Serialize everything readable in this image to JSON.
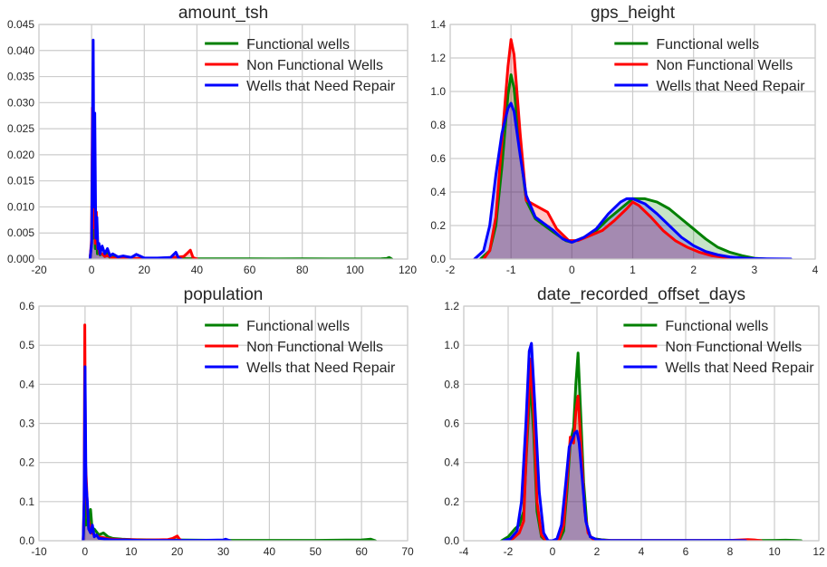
{
  "chart_data": [
    {
      "type": "area",
      "title": "amount_tsh",
      "xlim": [
        -20,
        120
      ],
      "ylim": [
        0,
        0.045
      ],
      "xticks": [
        -20,
        0,
        20,
        40,
        60,
        80,
        100,
        120
      ],
      "yticks": [
        0.0,
        0.005,
        0.01,
        0.015,
        0.02,
        0.025,
        0.03,
        0.035,
        0.04,
        0.045
      ],
      "ytick_labels": [
        "0.000",
        "0.005",
        "0.010",
        "0.015",
        "0.020",
        "0.025",
        "0.030",
        "0.035",
        "0.040",
        "0.045"
      ],
      "grid": true,
      "legend": "top-right",
      "series": [
        {
          "name": "Functional wells",
          "color": "#008000",
          "x": [
            -0.6,
            -0.2,
            0,
            0.3,
            0.6,
            1.0,
            1.4,
            1.8,
            2.2,
            2.7,
            3.2,
            4,
            5,
            6,
            7,
            8,
            10,
            12,
            15,
            20,
            30,
            40,
            50,
            60,
            70,
            80,
            90,
            100,
            110,
            112,
            113,
            114
          ],
          "y": [
            0,
            0.002,
            0.003,
            0.018,
            0.004,
            0.012,
            0.002,
            0.006,
            0.001,
            0.002,
            0.0008,
            0.001,
            0.0005,
            0.0012,
            0.0002,
            0.0006,
            0.0002,
            0.0003,
            0.0001,
            0.0001,
            0.0001,
            5e-05,
            5e-05,
            5e-05,
            3e-05,
            5e-05,
            3e-05,
            3e-05,
            5e-05,
            0.0001,
            0.0003,
            0
          ]
        },
        {
          "name": "Non Functional Wells",
          "color": "#ff0000",
          "x": [
            -0.6,
            -0.2,
            0,
            0.3,
            0.6,
            1.0,
            1.4,
            1.8,
            2.2,
            2.6,
            3,
            4,
            5,
            6,
            8,
            10,
            15,
            20,
            25,
            30,
            33,
            35,
            36.5,
            37.5,
            38.5,
            40
          ],
          "y": [
            0,
            0.0025,
            0.004,
            0.029,
            0.006,
            0.027,
            0.003,
            0.009,
            0.002,
            0.003,
            0.001,
            0.001,
            0.0005,
            0.0007,
            0.0002,
            0.0002,
            0.0001,
            0.0001,
            0.0001,
            0.0003,
            0.0004,
            0.0005,
            0.0012,
            0.0017,
            0.0003,
            0
          ]
        },
        {
          "name": "Wells that Need Repair",
          "color": "#0000ff",
          "x": [
            -0.6,
            -0.2,
            0,
            0.3,
            0.6,
            0.9,
            1.2,
            1.6,
            2.0,
            2.4,
            2.8,
            3.2,
            4,
            5,
            6,
            7,
            8,
            10,
            12,
            15,
            16,
            17,
            20,
            25,
            30,
            31,
            32,
            33,
            34
          ],
          "y": [
            0,
            0.002,
            0.003,
            0.022,
            0.042,
            0.01,
            0.028,
            0.004,
            0.008,
            0.002,
            0.003,
            0.001,
            0.0025,
            0.001,
            0.002,
            0.0006,
            0.001,
            0.0004,
            0.0006,
            0.0003,
            0.0006,
            0.0009,
            0.0002,
            0.0002,
            0.0003,
            0.0008,
            0.0013,
            0.0002,
            0
          ]
        }
      ]
    },
    {
      "type": "area",
      "title": "gps_height",
      "xlim": [
        -2,
        4
      ],
      "ylim": [
        0,
        1.4
      ],
      "xticks": [
        -2,
        -1,
        0,
        1,
        2,
        3,
        4
      ],
      "yticks": [
        0.0,
        0.2,
        0.4,
        0.6,
        0.8,
        1.0,
        1.2,
        1.4
      ],
      "ytick_labels": [
        "0.0",
        "0.2",
        "0.4",
        "0.6",
        "0.8",
        "1.0",
        "1.2",
        "1.4"
      ],
      "grid": true,
      "legend": "top-right",
      "series": [
        {
          "name": "Functional wells",
          "color": "#008000",
          "x": [
            -1.5,
            -1.35,
            -1.25,
            -1.15,
            -1.05,
            -1.0,
            -0.95,
            -0.85,
            -0.75,
            -0.6,
            -0.45,
            -0.3,
            -0.1,
            0,
            0.2,
            0.4,
            0.6,
            0.8,
            1.0,
            1.2,
            1.4,
            1.6,
            1.8,
            2.0,
            2.2,
            2.4,
            2.6,
            2.8,
            3.0,
            3.2
          ],
          "y": [
            0,
            0.05,
            0.2,
            0.55,
            0.98,
            1.1,
            1.02,
            0.65,
            0.35,
            0.24,
            0.2,
            0.16,
            0.11,
            0.1,
            0.13,
            0.17,
            0.24,
            0.3,
            0.36,
            0.36,
            0.34,
            0.3,
            0.24,
            0.18,
            0.12,
            0.07,
            0.04,
            0.02,
            0.005,
            0
          ]
        },
        {
          "name": "Non Functional Wells",
          "color": "#ff0000",
          "x": [
            -1.45,
            -1.35,
            -1.25,
            -1.15,
            -1.05,
            -1.0,
            -0.95,
            -0.85,
            -0.75,
            -0.55,
            -0.4,
            -0.25,
            -0.05,
            0.1,
            0.3,
            0.5,
            0.7,
            0.9,
            1.0,
            1.1,
            1.3,
            1.5,
            1.7,
            1.9,
            2.1,
            2.3,
            2.5,
            2.7
          ],
          "y": [
            0,
            0.05,
            0.25,
            0.7,
            1.15,
            1.31,
            1.22,
            0.75,
            0.35,
            0.31,
            0.28,
            0.18,
            0.11,
            0.11,
            0.14,
            0.17,
            0.23,
            0.3,
            0.34,
            0.32,
            0.25,
            0.17,
            0.11,
            0.07,
            0.04,
            0.02,
            0.01,
            0
          ]
        },
        {
          "name": "Wells that Need Repair",
          "color": "#0000ff",
          "x": [
            -1.6,
            -1.45,
            -1.35,
            -1.25,
            -1.15,
            -1.05,
            -1.0,
            -0.95,
            -0.85,
            -0.75,
            -0.6,
            -0.45,
            -0.3,
            -0.15,
            0,
            0.2,
            0.4,
            0.6,
            0.8,
            0.9,
            1.0,
            1.2,
            1.4,
            1.6,
            1.8,
            2.0,
            2.2,
            2.4,
            2.6,
            2.8,
            3.0,
            3.2,
            3.4,
            3.6
          ],
          "y": [
            0,
            0.05,
            0.2,
            0.5,
            0.75,
            0.9,
            0.93,
            0.88,
            0.62,
            0.38,
            0.25,
            0.21,
            0.17,
            0.12,
            0.1,
            0.13,
            0.18,
            0.27,
            0.34,
            0.36,
            0.36,
            0.33,
            0.27,
            0.2,
            0.13,
            0.08,
            0.045,
            0.025,
            0.012,
            0.006,
            0.003,
            0.001,
            0.0005,
            0
          ]
        }
      ]
    },
    {
      "type": "area",
      "title": "population",
      "xlim": [
        -10,
        70
      ],
      "ylim": [
        0,
        0.6
      ],
      "xticks": [
        -10,
        0,
        10,
        20,
        30,
        40,
        50,
        60,
        70
      ],
      "yticks": [
        0.0,
        0.1,
        0.2,
        0.3,
        0.4,
        0.5,
        0.6
      ],
      "ytick_labels": [
        "0.0",
        "0.1",
        "0.2",
        "0.3",
        "0.4",
        "0.5",
        "0.6"
      ],
      "grid": true,
      "legend": "top-right",
      "series": [
        {
          "name": "Functional wells",
          "color": "#008000",
          "x": [
            -0.4,
            -0.2,
            0,
            0.2,
            0.5,
            0.8,
            1.2,
            1.6,
            2,
            3,
            4,
            5,
            6,
            8,
            10,
            15,
            20,
            30,
            40,
            50,
            60,
            61,
            62,
            62.5,
            63
          ],
          "y": [
            0,
            0.05,
            0.12,
            0.04,
            0.07,
            0.03,
            0.08,
            0.02,
            0.03,
            0.015,
            0.02,
            0.01,
            0.006,
            0.004,
            0.003,
            0.002,
            0.002,
            0.001,
            0.001,
            0.001,
            0.002,
            0.003,
            0.004,
            0.002,
            0
          ]
        },
        {
          "name": "Non Functional Wells",
          "color": "#ff0000",
          "x": [
            -0.4,
            -0.2,
            -0.05,
            0.1,
            0.3,
            0.6,
            1.0,
            1.5,
            2,
            3,
            4,
            5,
            6,
            8,
            10,
            12,
            15,
            18,
            19,
            20,
            20.5,
            21
          ],
          "y": [
            0,
            0.1,
            0.552,
            0.2,
            0.15,
            0.06,
            0.04,
            0.02,
            0.015,
            0.01,
            0.008,
            0.005,
            0.004,
            0.003,
            0.003,
            0.002,
            0.002,
            0.003,
            0.006,
            0.012,
            0.004,
            0
          ]
        },
        {
          "name": "Wells that Need Repair",
          "color": "#0000ff",
          "x": [
            -0.4,
            -0.2,
            0,
            0.2,
            0.5,
            0.8,
            1.2,
            1.6,
            2,
            2.5,
            3,
            4,
            5,
            7,
            9,
            12,
            15,
            20,
            25,
            30,
            30.5,
            31,
            31.5
          ],
          "y": [
            0,
            0.1,
            0.445,
            0.15,
            0.1,
            0.03,
            0.02,
            0.04,
            0.01,
            0.015,
            0.006,
            0.005,
            0.003,
            0.002,
            0.002,
            0.001,
            0.001,
            0.001,
            0.001,
            0.002,
            0.004,
            0.002,
            0
          ]
        }
      ]
    },
    {
      "type": "area",
      "title": "date_recorded_offset_days",
      "xlim": [
        -4,
        12
      ],
      "ylim": [
        0,
        1.2
      ],
      "xticks": [
        -4,
        -2,
        0,
        2,
        4,
        6,
        8,
        10,
        12
      ],
      "yticks": [
        0.0,
        0.2,
        0.4,
        0.6,
        0.8,
        1.0,
        1.2
      ],
      "ytick_labels": [
        "0.0",
        "0.2",
        "0.4",
        "0.6",
        "0.8",
        "1.0",
        "1.2"
      ],
      "grid": true,
      "legend": "top-right",
      "series": [
        {
          "name": "Functional wells",
          "color": "#008000",
          "x": [
            -2.3,
            -2.0,
            -1.7,
            -1.5,
            -1.3,
            -1.15,
            -1.0,
            -0.85,
            -0.7,
            -0.5,
            -0.3,
            -0.1,
            0.1,
            0.3,
            0.5,
            0.65,
            0.8,
            0.95,
            1.05,
            1.15,
            1.25,
            1.4,
            1.55,
            1.7,
            1.9,
            2.2,
            2.6,
            3,
            5,
            7,
            9,
            10,
            10.5,
            10.9,
            11.2
          ],
          "y": [
            0,
            0.02,
            0.06,
            0.08,
            0.15,
            0.5,
            0.82,
            0.55,
            0.15,
            0.02,
            0,
            0,
            0,
            0,
            0.05,
            0.25,
            0.5,
            0.58,
            0.8,
            0.96,
            0.7,
            0.3,
            0.08,
            0.02,
            0.01,
            0.005,
            0.002,
            0.001,
            0.001,
            0.001,
            0.001,
            0.002,
            0.003,
            0.002,
            0
          ]
        },
        {
          "name": "Non Functional Wells",
          "color": "#ff0000",
          "x": [
            -2.1,
            -1.8,
            -1.5,
            -1.3,
            -1.15,
            -1.0,
            -0.85,
            -0.7,
            -0.5,
            -0.3,
            -0.1,
            0.1,
            0.3,
            0.5,
            0.65,
            0.8,
            0.95,
            1.05,
            1.15,
            1.3,
            1.45,
            1.6,
            1.8,
            2.1,
            2.6,
            4,
            6,
            8,
            8.8,
            9.1,
            9.4
          ],
          "y": [
            0,
            0.01,
            0.04,
            0.1,
            0.55,
            0.93,
            0.65,
            0.2,
            0.03,
            0,
            0,
            0,
            0.01,
            0.08,
            0.3,
            0.53,
            0.5,
            0.66,
            0.74,
            0.45,
            0.15,
            0.04,
            0.01,
            0.004,
            0.001,
            0.001,
            0.001,
            0.002,
            0.006,
            0.004,
            0
          ]
        },
        {
          "name": "Wells that Need Repair",
          "color": "#0000ff",
          "x": [
            -2.2,
            -1.9,
            -1.6,
            -1.4,
            -1.2,
            -1.05,
            -0.95,
            -0.8,
            -0.6,
            -0.4,
            -0.2,
            0,
            0.2,
            0.4,
            0.6,
            0.75,
            0.9,
            1.0,
            1.1,
            1.2,
            1.35,
            1.5,
            1.7,
            2.0,
            2.4,
            3,
            5,
            7,
            8,
            8.5,
            8.7
          ],
          "y": [
            0,
            0.01,
            0.05,
            0.2,
            0.6,
            0.97,
            1.01,
            0.7,
            0.25,
            0.04,
            0,
            0,
            0.01,
            0.08,
            0.3,
            0.48,
            0.52,
            0.55,
            0.56,
            0.5,
            0.3,
            0.1,
            0.02,
            0.005,
            0.002,
            0.001,
            0.001,
            0.001,
            0.002,
            0.001,
            0
          ]
        }
      ]
    }
  ]
}
